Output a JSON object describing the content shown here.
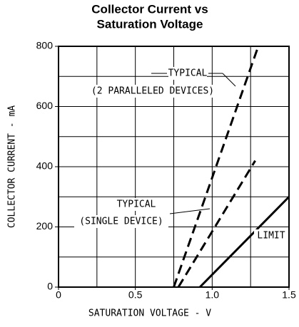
{
  "chart_data": {
    "type": "line",
    "title": [
      "Collector Current vs",
      "Saturation Voltage"
    ],
    "xlabel": "SATURATION VOLTAGE - V",
    "ylabel": "COLLECTOR CURRENT - mA",
    "xlim": [
      0,
      1.5
    ],
    "ylim": [
      0,
      800
    ],
    "xticks": [
      0,
      0.5,
      {
        "value": 1,
        "label": "1.0"
      },
      1.5
    ],
    "yticks": [
      0,
      200,
      400,
      600,
      800
    ],
    "xgrid": [
      0.25,
      0.5,
      0.75,
      1,
      1.25
    ],
    "ygrid": [
      100,
      200,
      300,
      400,
      500,
      600,
      700
    ],
    "grid": true,
    "series": [
      {
        "color": "#000000",
        "style": "dashed",
        "x": [
          0.75,
          1.3
        ],
        "values": [
          0,
          800
        ]
      },
      {
        "color": "#000000",
        "style": "dashed",
        "x": [
          0.78,
          1.28
        ],
        "values": [
          0,
          420
        ]
      },
      {
        "color": "#000000",
        "style": "solid",
        "x": [
          0.92,
          1.5
        ],
        "values": [
          0,
          300
        ]
      }
    ],
    "annotations": [
      "TYPICAL",
      "(2 PARALLELED DEVICES)",
      "TYPICAL",
      "(SINGLE DEVICE)",
      "LIMIT"
    ]
  }
}
